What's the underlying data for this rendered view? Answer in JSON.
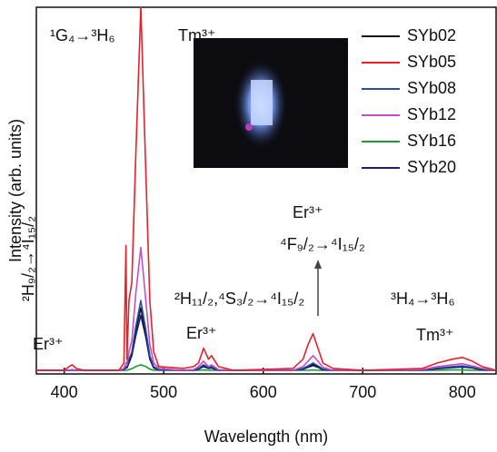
{
  "chart_data": {
    "type": "line",
    "xlabel": "Wavelength (nm)",
    "ylabel": "Intensity (arb. units)",
    "xlim": [
      372,
      834
    ],
    "ylim": [
      0,
      100
    ],
    "xticks": [
      400,
      500,
      600,
      700,
      800
    ],
    "legend": "upper right",
    "annotations": [
      "¹G₄→³H₆",
      "Tm³⁺",
      "Er³⁺",
      "²H₉/₂→⁴I₁₅/₂",
      "²H₁₁/₂,⁴S₃/₂→⁴I₁₅/₂",
      "Er³⁺",
      "Er³⁺",
      "⁴F₉/₂→⁴I₁₅/₂",
      "³H₄→³H₆",
      "Tm³⁺"
    ],
    "x": [
      372,
      400,
      405,
      408,
      412,
      420,
      455,
      460,
      462,
      463,
      465,
      468,
      472,
      477,
      482,
      486,
      490,
      495,
      520,
      530,
      535,
      540,
      545,
      548,
      555,
      570,
      630,
      640,
      645,
      650,
      655,
      660,
      670,
      700,
      760,
      775,
      790,
      800,
      810,
      820,
      834
    ],
    "series": [
      {
        "name": "SYb02",
        "color": "#111111",
        "values": [
          1,
          1,
          1,
          1.1,
          1,
          1,
          1,
          1.2,
          1.8,
          1.8,
          3.5,
          5.5,
          12,
          18,
          11,
          4.5,
          1.8,
          1.2,
          1,
          1.1,
          1.4,
          2.2,
          1.6,
          1.8,
          1.1,
          1,
          1,
          1.4,
          2,
          2.6,
          2,
          1.2,
          1,
          1,
          1.1,
          1.5,
          1.9,
          2.1,
          1.7,
          1.2,
          1
        ]
      },
      {
        "name": "SYb05",
        "color": "#e8202a",
        "values": [
          1,
          1,
          2,
          2.5,
          1.5,
          1,
          1,
          3,
          35,
          4,
          20,
          25,
          60,
          100,
          55,
          20,
          6,
          2,
          1.5,
          2,
          3,
          7,
          4,
          5,
          2,
          1,
          1.5,
          4,
          8,
          11,
          7,
          3,
          1.5,
          1,
          1.5,
          3,
          4,
          4.5,
          3.5,
          2,
          1
        ]
      },
      {
        "name": "SYb08",
        "color": "#2a4bb0",
        "values": [
          1,
          1,
          1,
          1.1,
          1,
          1,
          1,
          1.3,
          2,
          2,
          4,
          6,
          13,
          20,
          12,
          5,
          2,
          1.2,
          1,
          1.1,
          1.5,
          2.5,
          1.8,
          2,
          1.1,
          1,
          1,
          1.5,
          2.2,
          3,
          2.2,
          1.3,
          1,
          1,
          1.1,
          1.6,
          2,
          2.2,
          1.8,
          1.3,
          1
        ]
      },
      {
        "name": "SYb12",
        "color": "#c050c8",
        "values": [
          1,
          1,
          1,
          1.2,
          1,
          1,
          1,
          1.5,
          3,
          3,
          6,
          9,
          22,
          34.5,
          20,
          8,
          3,
          1.5,
          1,
          1.2,
          2,
          3.5,
          2,
          2.5,
          1.2,
          1,
          1,
          2,
          3.5,
          5,
          3.5,
          1.8,
          1,
          1,
          1.2,
          2,
          2.5,
          2.8,
          2.2,
          1.5,
          1
        ]
      },
      {
        "name": "SYb16",
        "color": "#1a9a3a",
        "values": [
          1,
          1,
          1,
          1,
          1,
          1,
          1,
          1,
          1,
          1,
          1.2,
          1.4,
          2,
          2.5,
          2,
          1.3,
          1,
          1,
          1,
          1,
          1,
          1.1,
          1,
          1,
          1,
          1,
          1,
          1,
          1,
          1.1,
          1,
          1,
          1,
          1,
          1,
          1,
          1.1,
          1.1,
          1,
          1,
          1
        ]
      },
      {
        "name": "SYb20",
        "color": "#1c1f6e",
        "values": [
          1,
          1,
          1,
          1,
          1,
          1,
          1,
          1.2,
          1.6,
          1.6,
          3,
          5,
          10.5,
          16,
          10,
          4,
          1.6,
          1.1,
          1,
          1,
          1.3,
          2,
          1.5,
          1.6,
          1,
          1,
          1,
          1.3,
          1.8,
          2.3,
          1.8,
          1.1,
          1,
          1,
          1,
          1.4,
          1.7,
          1.9,
          1.6,
          1.1,
          1
        ]
      }
    ]
  }
}
